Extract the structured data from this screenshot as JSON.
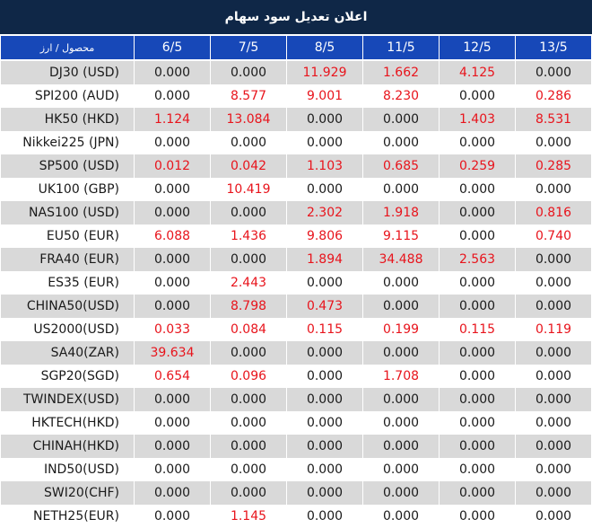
{
  "title": "اعلان تعدیل سود سهام",
  "header": {
    "corner": "محصول / ارز",
    "dates": [
      "6/5",
      "7/5",
      "8/5",
      "11/5",
      "12/5",
      "13/5"
    ]
  },
  "colors": {
    "title_bg": "#0f2747",
    "header_bg": "#1748b8",
    "odd_row": "#d9d9d9",
    "even_row": "#ffffff",
    "positive_value": "#e8141c",
    "zero_value": "#1a1a1a"
  },
  "rows": [
    {
      "name": "DJ30 (USD)",
      "values": [
        "0.000",
        "0.000",
        "11.929",
        "1.662",
        "4.125",
        "0.000"
      ]
    },
    {
      "name": "SPI200 (AUD)",
      "values": [
        "0.000",
        "8.577",
        "9.001",
        "8.230",
        "0.000",
        "0.286"
      ]
    },
    {
      "name": "HK50 (HKD)",
      "values": [
        "1.124",
        "13.084",
        "0.000",
        "0.000",
        "1.403",
        "8.531"
      ]
    },
    {
      "name": "Nikkei225 (JPN)",
      "values": [
        "0.000",
        "0.000",
        "0.000",
        "0.000",
        "0.000",
        "0.000"
      ]
    },
    {
      "name": "SP500 (USD)",
      "values": [
        "0.012",
        "0.042",
        "1.103",
        "0.685",
        "0.259",
        "0.285"
      ]
    },
    {
      "name": "UK100 (GBP)",
      "values": [
        "0.000",
        "10.419",
        "0.000",
        "0.000",
        "0.000",
        "0.000"
      ]
    },
    {
      "name": "NAS100 (USD)",
      "values": [
        "0.000",
        "0.000",
        "2.302",
        "1.918",
        "0.000",
        "0.816"
      ]
    },
    {
      "name": "EU50 (EUR)",
      "values": [
        "6.088",
        "1.436",
        "9.806",
        "9.115",
        "0.000",
        "0.740"
      ]
    },
    {
      "name": "FRA40 (EUR)",
      "values": [
        "0.000",
        "0.000",
        "1.894",
        "34.488",
        "2.563",
        "0.000"
      ]
    },
    {
      "name": "ES35 (EUR)",
      "values": [
        "0.000",
        "2.443",
        "0.000",
        "0.000",
        "0.000",
        "0.000"
      ]
    },
    {
      "name": "CHINA50(USD)",
      "values": [
        "0.000",
        "8.798",
        "0.473",
        "0.000",
        "0.000",
        "0.000"
      ]
    },
    {
      "name": "US2000(USD)",
      "values": [
        "0.033",
        "0.084",
        "0.115",
        "0.199",
        "0.115",
        "0.119"
      ]
    },
    {
      "name": "SA40(ZAR)",
      "values": [
        "39.634",
        "0.000",
        "0.000",
        "0.000",
        "0.000",
        "0.000"
      ]
    },
    {
      "name": "SGP20(SGD)",
      "values": [
        "0.654",
        "0.096",
        "0.000",
        "1.708",
        "0.000",
        "0.000"
      ]
    },
    {
      "name": "TWINDEX(USD)",
      "values": [
        "0.000",
        "0.000",
        "0.000",
        "0.000",
        "0.000",
        "0.000"
      ]
    },
    {
      "name": "HKTECH(HKD)",
      "values": [
        "0.000",
        "0.000",
        "0.000",
        "0.000",
        "0.000",
        "0.000"
      ]
    },
    {
      "name": "CHINAH(HKD)",
      "values": [
        "0.000",
        "0.000",
        "0.000",
        "0.000",
        "0.000",
        "0.000"
      ]
    },
    {
      "name": "IND50(USD)",
      "values": [
        "0.000",
        "0.000",
        "0.000",
        "0.000",
        "0.000",
        "0.000"
      ]
    },
    {
      "name": "SWI20(CHF)",
      "values": [
        "0.000",
        "0.000",
        "0.000",
        "0.000",
        "0.000",
        "0.000"
      ]
    },
    {
      "name": "NETH25(EUR)",
      "values": [
        "0.000",
        "1.145",
        "0.000",
        "0.000",
        "0.000",
        "0.000"
      ]
    }
  ]
}
